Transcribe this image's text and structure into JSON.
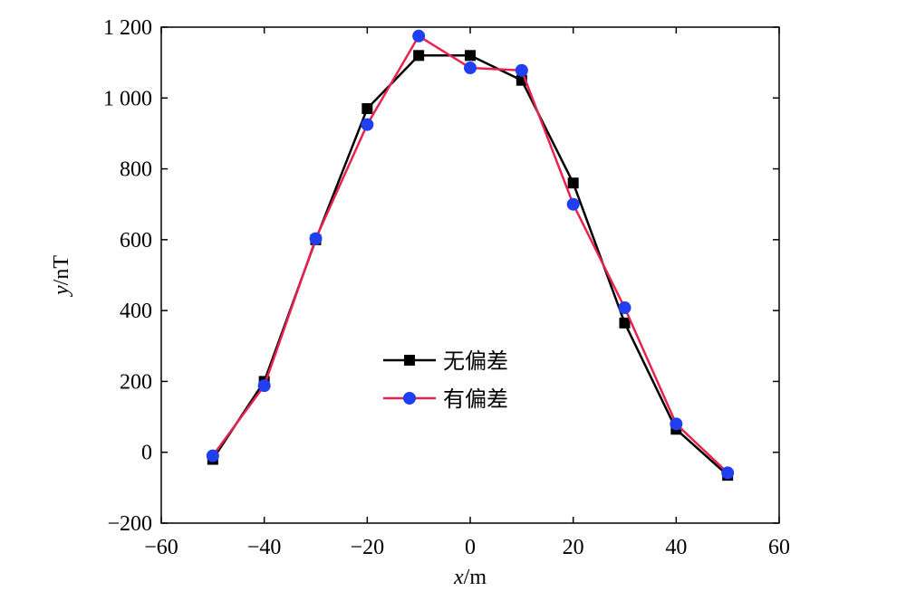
{
  "chart_data": {
    "type": "line",
    "xlabel_var": "x",
    "xlabel_unit": "/m",
    "ylabel_var": "y",
    "ylabel_unit": "/nT",
    "xlim": [
      -60,
      60
    ],
    "ylim": [
      -200,
      1200
    ],
    "x_ticks": [
      -60,
      -40,
      -20,
      0,
      20,
      40,
      60
    ],
    "y_ticks": [
      -200,
      0,
      200,
      400,
      600,
      800,
      1000,
      1200
    ],
    "x_tick_labels": [
      "−60",
      "−40",
      "−20",
      "0",
      "20",
      "40",
      "60"
    ],
    "y_tick_labels": [
      "−200",
      "0",
      "200",
      "400",
      "600",
      "800",
      "1 000",
      "1 200"
    ],
    "grid": false,
    "legend_position": "center",
    "x": [
      -50,
      -40,
      -30,
      -20,
      -10,
      0,
      10,
      20,
      30,
      40,
      50
    ],
    "series": [
      {
        "name": "无偏差",
        "color": "#000000",
        "marker": "square",
        "values": [
          -20,
          200,
          600,
          970,
          1120,
          1120,
          1050,
          760,
          365,
          65,
          -65
        ]
      },
      {
        "name": "有偏差",
        "color": "#e8224f",
        "marker": "circle",
        "marker_color": "#1f3ff0",
        "values": [
          -10,
          188,
          603,
          925,
          1175,
          1085,
          1078,
          700,
          408,
          80,
          -58
        ]
      }
    ]
  }
}
